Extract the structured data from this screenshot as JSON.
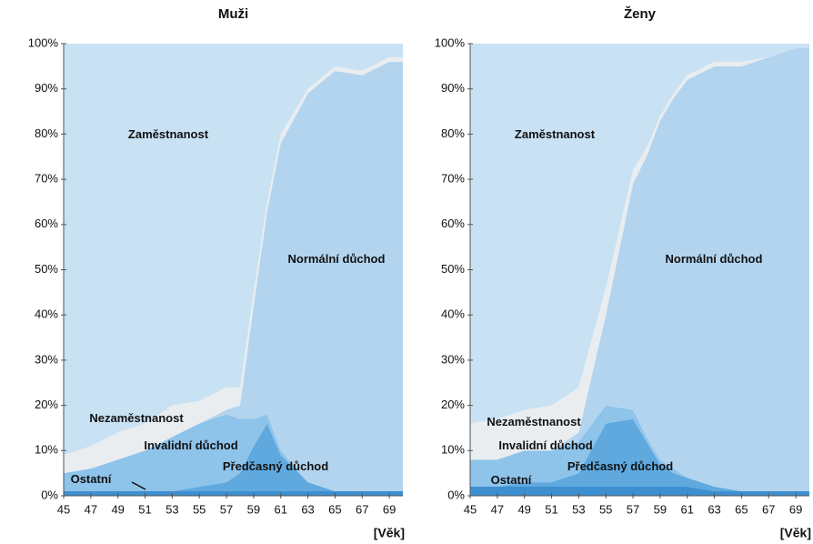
{
  "chart_data": [
    {
      "type": "stacked_area",
      "title": "Muži",
      "xlabel": "[Věk]",
      "x": [
        45,
        47,
        49,
        51,
        53,
        55,
        57,
        58,
        59,
        60,
        61,
        63,
        65,
        67,
        69,
        70
      ],
      "xlim": [
        45,
        70
      ],
      "xticks": [
        45,
        47,
        49,
        51,
        53,
        55,
        57,
        59,
        61,
        63,
        65,
        67,
        69
      ],
      "ylim": [
        0,
        100
      ],
      "yticks": [
        {
          "value": 0,
          "label": "0%"
        },
        {
          "value": 10,
          "label": "10%"
        },
        {
          "value": 20,
          "label": "20%"
        },
        {
          "value": 30,
          "label": "30%"
        },
        {
          "value": 40,
          "label": "40%"
        },
        {
          "value": 50,
          "label": "50%"
        },
        {
          "value": 60,
          "label": "60%"
        },
        {
          "value": 70,
          "label": "70%"
        },
        {
          "value": 80,
          "label": "80%"
        },
        {
          "value": 90,
          "label": "90%"
        },
        {
          "value": 100,
          "label": "100%"
        }
      ],
      "series": [
        {
          "name": "Ostatní",
          "color": "#3d8fd0",
          "values": [
            1,
            1,
            1,
            1,
            1,
            1,
            1,
            1,
            1,
            1,
            1,
            1,
            1,
            1,
            1,
            1
          ]
        },
        {
          "name": "Předčasný důchod",
          "color": "#5fa9df",
          "values": [
            0,
            0,
            0,
            0,
            0,
            1,
            2,
            4,
            10,
            15,
            8,
            2,
            0,
            0,
            0,
            0
          ]
        },
        {
          "name": "Invalidní důchod",
          "color": "#8ec3ea",
          "values": [
            4,
            5,
            7,
            9,
            12,
            14,
            15,
            12,
            6,
            2,
            1,
            0,
            0,
            0,
            0,
            0
          ]
        },
        {
          "name": "Normální důchod",
          "color": "#b2d4ef",
          "values": [
            0,
            0,
            0,
            0,
            0,
            0,
            1,
            3,
            25,
            45,
            68,
            86,
            93,
            92,
            95,
            95
          ]
        },
        {
          "name": "Nezaměstnanost",
          "color": "#e9edf0",
          "values": [
            4,
            5,
            6,
            6,
            7,
            5,
            5,
            4,
            3,
            2,
            2,
            1,
            1,
            1,
            1,
            1
          ]
        },
        {
          "name": "Zaměstnanost",
          "color": "#c8e1f3",
          "values": [
            91,
            89,
            86,
            84,
            80,
            79,
            76,
            76,
            55,
            35,
            20,
            10,
            5,
            6,
            3,
            3
          ]
        }
      ]
    },
    {
      "type": "stacked_area",
      "title": "Ženy",
      "xlabel": "[Věk]",
      "x": [
        45,
        47,
        49,
        51,
        53,
        55,
        57,
        58,
        59,
        60,
        61,
        63,
        65,
        67,
        69,
        70
      ],
      "xlim": [
        45,
        70
      ],
      "xticks": [
        45,
        47,
        49,
        51,
        53,
        55,
        57,
        59,
        61,
        63,
        65,
        67,
        69
      ],
      "ylim": [
        0,
        100
      ],
      "yticks": [
        {
          "value": 0,
          "label": "0%"
        },
        {
          "value": 10,
          "label": "10%"
        },
        {
          "value": 20,
          "label": "20%"
        },
        {
          "value": 30,
          "label": "30%"
        },
        {
          "value": 40,
          "label": "40%"
        },
        {
          "value": 50,
          "label": "50%"
        },
        {
          "value": 60,
          "label": "60%"
        },
        {
          "value": 70,
          "label": "70%"
        },
        {
          "value": 80,
          "label": "80%"
        },
        {
          "value": 90,
          "label": "90%"
        },
        {
          "value": 100,
          "label": "100%"
        }
      ],
      "series": [
        {
          "name": "Ostatní",
          "color": "#3d8fd0",
          "values": [
            2,
            2,
            2,
            2,
            2,
            2,
            2,
            2,
            2,
            2,
            2,
            1,
            1,
            1,
            1,
            1
          ]
        },
        {
          "name": "Předčasný důchod",
          "color": "#5fa9df",
          "values": [
            0,
            0,
            1,
            1,
            3,
            14,
            15,
            10,
            5,
            3,
            2,
            1,
            0,
            0,
            0,
            0
          ]
        },
        {
          "name": "Invalidní důchod",
          "color": "#8ec3ea",
          "values": [
            6,
            6,
            7,
            7,
            7,
            4,
            2,
            1,
            1,
            1,
            0,
            0,
            0,
            0,
            0,
            0
          ]
        },
        {
          "name": "Normální důchod",
          "color": "#b2d4ef",
          "values": [
            0,
            0,
            0,
            0,
            2,
            20,
            50,
            62,
            75,
            82,
            88,
            93,
            94,
            96,
            98,
            98
          ]
        },
        {
          "name": "Nezaměstnanost",
          "color": "#e9edf0",
          "values": [
            8,
            9,
            9,
            10,
            10,
            6,
            3,
            2,
            1,
            1,
            1,
            1,
            1,
            0,
            0,
            0
          ]
        },
        {
          "name": "Zaměstnanost",
          "color": "#c8e1f3",
          "values": [
            84,
            83,
            81,
            80,
            76,
            54,
            28,
            23,
            16,
            11,
            7,
            4,
            4,
            3,
            1,
            1
          ]
        }
      ]
    }
  ]
}
